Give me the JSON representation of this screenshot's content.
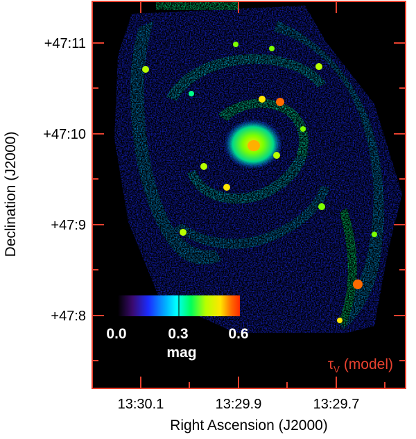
{
  "image": {
    "description_free": true,
    "colors": {
      "frame": "#e8412f",
      "background": "#000000",
      "label": "#000000",
      "overlay_text": "#ffffff",
      "model_label": "#e8412f"
    }
  },
  "axes": {
    "x_title": "Right Ascension (J2000)",
    "y_title": "Declination (J2000)",
    "x_ticks": [
      "13:30.1",
      "13:29.9",
      "13:29.7"
    ],
    "y_ticks": [
      "+47:11",
      "+47:10",
      "+47:9",
      "+47:8"
    ]
  },
  "colorbar": {
    "ticks": [
      "0.0",
      "0.3",
      "0.6"
    ],
    "unit": "mag",
    "range": [
      0.0,
      0.6
    ],
    "colormap": [
      "#000000",
      "#3a0a6e",
      "#1a2cff",
      "#00b8ff",
      "#00ffff",
      "#00ff5a",
      "#b8ff00",
      "#ffe600",
      "#ff6a00",
      "#ff2a00"
    ]
  },
  "model_label": {
    "symbol": "τ",
    "subscript": "V",
    "text": "(model)"
  }
}
